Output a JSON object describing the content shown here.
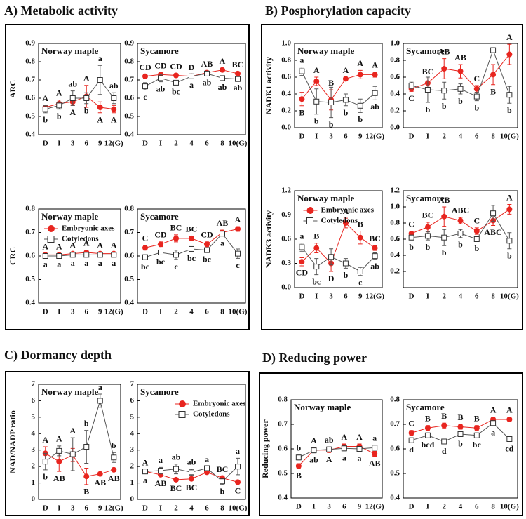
{
  "headings": [
    "A) Metabolic activity",
    "B) Posphorylation capacity",
    "C) Dormancy depth",
    "D) Reducing power"
  ],
  "chart_data": [
    {
      "type": "line",
      "title": "Norway maple",
      "ylabel": "ARC",
      "categories": [
        "D",
        "I",
        "3",
        "6",
        "9",
        "12(G)"
      ],
      "ylim": [
        0.4,
        0.9
      ],
      "yticks": [
        0.4,
        0.5,
        0.6,
        0.7,
        0.8,
        0.9
      ],
      "series": [
        {
          "color": "#e8251f",
          "marker": "circle",
          "values": [
            0.55,
            0.57,
            0.58,
            0.61,
            0.55,
            0.54
          ],
          "errors": [
            0.01,
            0.02,
            0.02,
            0.06,
            0.03,
            0.02
          ],
          "letters": [
            "A",
            "A",
            "A",
            "A",
            "A",
            "A"
          ]
        },
        {
          "color": "#555555",
          "marker": "square",
          "values": [
            0.54,
            0.56,
            0.6,
            0.6,
            0.7,
            0.6
          ],
          "errors": [
            0.02,
            0.02,
            0.04,
            0.03,
            0.08,
            0.03
          ],
          "letters": [
            "b",
            "b",
            "ab",
            "b",
            "a",
            "ab"
          ]
        }
      ]
    },
    {
      "type": "line",
      "title": "Sycamore",
      "categories": [
        "D",
        "I",
        "2",
        "4",
        "6",
        "8",
        "10(G)"
      ],
      "ylim": [
        0.4,
        0.9
      ],
      "yticks": [
        0.4,
        0.5,
        0.6,
        0.7,
        0.8,
        0.9
      ],
      "series": [
        {
          "color": "#e8251f",
          "marker": "circle",
          "values": [
            0.72,
            0.73,
            0.725,
            0.72,
            0.74,
            0.755,
            0.735
          ],
          "errors": [
            0.01,
            0.01,
            0.01,
            0.01,
            0.01,
            0.01,
            0.01
          ],
          "letters": [
            "CD",
            "CD",
            "CD",
            "D",
            "AB",
            "A",
            "BC"
          ]
        },
        {
          "color": "#555555",
          "marker": "square",
          "values": [
            0.665,
            0.71,
            0.685,
            0.72,
            0.735,
            0.71,
            0.705
          ],
          "errors": [
            0.02,
            0.02,
            0.01,
            0.01,
            0.01,
            0.01,
            0.01
          ],
          "letters": [
            "c",
            "ab",
            "bc",
            "a",
            "ab",
            "ab",
            "ab"
          ]
        }
      ]
    },
    {
      "type": "line",
      "title": "Norway maple",
      "ylabel": "CRC",
      "legend": "upper left",
      "categories": [
        "D",
        "I",
        "3",
        "6",
        "9",
        "12(G)"
      ],
      "ylim": [
        0.4,
        0.8
      ],
      "yticks": [
        0.4,
        0.5,
        0.6,
        0.7,
        0.8
      ],
      "series": [
        {
          "name": "Embryonic axes",
          "color": "#e8251f",
          "marker": "circle",
          "values": [
            0.605,
            0.605,
            0.61,
            0.615,
            0.61,
            0.61
          ],
          "errors": [
            0.005,
            0.005,
            0.005,
            0.01,
            0.005,
            0.005
          ],
          "letters": [
            "A",
            "A",
            "A",
            "A",
            "A",
            "A"
          ]
        },
        {
          "name": "Cotyledons",
          "color": "#555555",
          "marker": "square",
          "values": [
            0.6,
            0.6,
            0.605,
            0.605,
            0.605,
            0.605
          ],
          "errors": [
            0.005,
            0.005,
            0.005,
            0.005,
            0.005,
            0.005
          ],
          "letters": [
            "a",
            "a",
            "a",
            "a",
            "a",
            "a"
          ]
        }
      ]
    },
    {
      "type": "line",
      "title": "Sycamore",
      "categories": [
        "D",
        "I",
        "2",
        "4",
        "6",
        "8",
        "10(G)"
      ],
      "ylim": [
        0.4,
        0.8
      ],
      "yticks": [
        0.4,
        0.5,
        0.6,
        0.7,
        0.8
      ],
      "series": [
        {
          "color": "#e8251f",
          "marker": "circle",
          "values": [
            0.635,
            0.65,
            0.675,
            0.675,
            0.65,
            0.7,
            0.715
          ],
          "errors": [
            0.01,
            0.01,
            0.015,
            0.01,
            0.01,
            0.01,
            0.01
          ],
          "letters": [
            "C",
            "CD",
            "BC",
            "BC",
            "CD",
            "AB",
            "A"
          ]
        },
        {
          "color": "#555555",
          "marker": "square",
          "values": [
            0.595,
            0.615,
            0.605,
            0.63,
            0.625,
            0.695,
            0.61
          ],
          "errors": [
            0.01,
            0.01,
            0.02,
            0.01,
            0.01,
            0.01,
            0.02
          ],
          "letters": [
            "bc",
            "bc",
            "c",
            "bc",
            "bc",
            "a",
            "c"
          ]
        }
      ]
    },
    {
      "type": "line",
      "title": "Norway maple",
      "ylabel": "NADK1 activity",
      "categories": [
        "D",
        "I",
        "3",
        "6",
        "9",
        "12(G)"
      ],
      "ylim": [
        0,
        1
      ],
      "yticks": [
        {
          "value": 0,
          "label": "0.0"
        },
        0.2,
        0.4,
        0.6,
        0.8,
        {
          "value": 1,
          "label": "1.0"
        }
      ],
      "series": [
        {
          "color": "#e8251f",
          "marker": "circle",
          "values": [
            0.34,
            0.55,
            0.33,
            0.58,
            0.63,
            0.63
          ],
          "errors": [
            0.08,
            0.05,
            0.12,
            0.02,
            0.05,
            0.03
          ],
          "letters": [
            "B",
            "A",
            "B",
            "A",
            "A",
            "A"
          ]
        },
        {
          "color": "#555555",
          "marker": "square",
          "values": [
            0.67,
            0.31,
            0.3,
            0.33,
            0.26,
            0.41
          ],
          "errors": [
            0.05,
            0.15,
            0.18,
            0.07,
            0.08,
            0.08
          ],
          "letters": [
            "a",
            "b",
            "b",
            "b",
            "b",
            "ab"
          ]
        }
      ]
    },
    {
      "type": "line",
      "title": "Sycamore",
      "categories": [
        "D",
        "I",
        "2",
        "4",
        "6",
        "8",
        "10(G)"
      ],
      "ylim": [
        0,
        1
      ],
      "yticks": [
        {
          "value": 0,
          "label": "0.0"
        },
        0.2,
        0.4,
        0.6,
        0.8,
        {
          "value": 1,
          "label": "1.0"
        }
      ],
      "series": [
        {
          "color": "#e8251f",
          "marker": "circle",
          "values": [
            0.46,
            0.53,
            0.7,
            0.67,
            0.46,
            0.63,
            0.87
          ],
          "errors": [
            0.03,
            0.05,
            0.12,
            0.08,
            0.04,
            0.12,
            0.12
          ],
          "letters": [
            "C",
            "BC",
            "AB",
            "AB",
            "C",
            "B",
            "A"
          ]
        },
        {
          "color": "#555555",
          "marker": "square",
          "values": [
            0.5,
            0.45,
            0.44,
            0.46,
            0.37,
            0.92,
            0.39
          ],
          "errors": [
            0.04,
            0.15,
            0.1,
            0.06,
            0.05,
            0.03,
            0.1
          ],
          "letters": [
            null,
            "b",
            "b",
            "b",
            "b",
            null,
            "b"
          ]
        }
      ]
    },
    {
      "type": "line",
      "title": "Norway maple",
      "ylabel": "NADK3 activity",
      "legend": "upper center",
      "categories": [
        "D",
        "I",
        "3",
        "6",
        "9",
        "12(G)"
      ],
      "ylim": [
        0,
        1.2
      ],
      "yticks": [
        {
          "value": 0,
          "label": "0.0"
        },
        0.3,
        0.6,
        0.9,
        1.2
      ],
      "series": [
        {
          "name": "Embryonic axes",
          "color": "#e8251f",
          "marker": "circle",
          "values": [
            0.32,
            0.49,
            0.3,
            0.8,
            0.62,
            0.49
          ],
          "errors": [
            0.05,
            0.06,
            0.1,
            0.06,
            0.08,
            0.03
          ],
          "letters": [
            "CD",
            "B",
            "D",
            "A",
            "B",
            "BC"
          ]
        },
        {
          "name": "Cotyledons",
          "color": "#555555",
          "marker": "square",
          "values": [
            0.5,
            0.26,
            0.38,
            0.3,
            0.2,
            0.39
          ],
          "errors": [
            0.05,
            0.1,
            0.1,
            0.06,
            0.05,
            0.04
          ],
          "letters": [
            "a",
            "bc",
            null,
            "b",
            "c",
            "ab"
          ]
        }
      ]
    },
    {
      "type": "line",
      "title": "Sycamore",
      "categories": [
        "D",
        "I",
        "2",
        "4",
        "6",
        "8",
        "10(G)"
      ],
      "ylim": [
        0,
        1.2
      ],
      "yticks": [
        0.2,
        0.4,
        0.6,
        0.8,
        {
          "value": 1,
          "label": "1.0"
        },
        1.2
      ],
      "series": [
        {
          "color": "#e8251f",
          "marker": "circle",
          "values": [
            0.67,
            0.75,
            0.88,
            0.83,
            0.7,
            0.83,
            0.97
          ],
          "errors": [
            0.03,
            0.06,
            0.12,
            0.04,
            0.04,
            0.06,
            0.06
          ],
          "letters": [
            "C",
            "BC",
            "AB",
            "ABC",
            "C",
            "ABC",
            "A"
          ]
        },
        {
          "color": "#555555",
          "marker": "square",
          "values": [
            0.62,
            0.64,
            0.62,
            0.67,
            0.6,
            0.92,
            0.58
          ],
          "errors": [
            0.03,
            0.05,
            0.1,
            0.05,
            0.03,
            0.1,
            0.1
          ],
          "letters": [
            "b",
            "b",
            "b",
            "b",
            "b",
            null,
            "b"
          ]
        }
      ]
    },
    {
      "type": "line",
      "title": "Norway maple",
      "ylabel": "NAD/NADP ratio",
      "categories": [
        "D",
        "I",
        "3",
        "6",
        "9",
        "12(G)"
      ],
      "ylim": [
        0,
        7
      ],
      "yticks": [
        0,
        1,
        2,
        3,
        4,
        5,
        6,
        7
      ],
      "series": [
        {
          "color": "#e8251f",
          "marker": "circle",
          "values": [
            2.8,
            2.3,
            2.7,
            1.4,
            1.55,
            1.8
          ],
          "errors": [
            0.4,
            0.6,
            0.4,
            0.5,
            0.1,
            0.1
          ],
          "letters": [
            "A",
            "AB",
            null,
            "B",
            "AB",
            "AB"
          ]
        },
        {
          "color": "#555555",
          "marker": "square",
          "values": [
            2.3,
            2.95,
            2.75,
            3.2,
            6.0,
            2.55
          ],
          "errors": [
            0.5,
            0.3,
            1.0,
            1.0,
            0.4,
            0.3
          ],
          "letters": [
            "b",
            "A",
            "A",
            "b",
            "a",
            "b"
          ]
        }
      ]
    },
    {
      "type": "line",
      "title": "Sycamore",
      "legend": "upper right",
      "categories": [
        "D",
        "I",
        "2",
        "4",
        "6",
        "8",
        "10(G)"
      ],
      "ylim": [
        0,
        7
      ],
      "yticks": [
        0,
        1,
        2,
        3,
        4,
        5,
        6,
        7
      ],
      "series": [
        {
          "name": "Embryonic axes",
          "color": "#e8251f",
          "marker": "circle",
          "values": [
            1.7,
            1.5,
            1.2,
            1.25,
            1.65,
            1.3,
            1.05
          ],
          "errors": [
            0.1,
            0.1,
            0.1,
            0.1,
            0.1,
            0.1,
            0.1
          ],
          "letters": [
            "A",
            "AB",
            "BC",
            "BC",
            null,
            "BC",
            "C"
          ]
        },
        {
          "name": "Cotyledons",
          "color": "#555555",
          "marker": "square",
          "values": [
            1.7,
            1.75,
            1.85,
            1.65,
            1.9,
            1.1,
            2.0
          ],
          "errors": [
            0.1,
            0.2,
            0.3,
            0.2,
            0.1,
            0.2,
            0.5
          ],
          "letters": [
            "a",
            "a",
            "ab",
            "ab",
            "a",
            "b",
            "a"
          ]
        }
      ]
    },
    {
      "type": "line",
      "title": "Norway maple",
      "ylabel": "Reducing power",
      "categories": [
        "D",
        "I",
        "3",
        "6",
        "9",
        "12(G)"
      ],
      "ylim": [
        0.4,
        0.8
      ],
      "yticks": [
        0.4,
        0.5,
        0.6,
        0.7,
        0.8
      ],
      "series": [
        {
          "color": "#e8251f",
          "marker": "circle",
          "values": [
            0.53,
            0.595,
            0.595,
            0.61,
            0.61,
            0.58
          ],
          "errors": [
            0.01,
            0.01,
            0.01,
            0.01,
            0.01,
            0.01
          ],
          "letters": [
            "B",
            "A",
            "A",
            "A",
            "A",
            "AB"
          ]
        },
        {
          "color": "#555555",
          "marker": "square",
          "values": [
            0.565,
            0.594,
            0.598,
            0.602,
            0.6,
            0.605
          ],
          "errors": [
            0.01,
            0.01,
            0.01,
            0.01,
            0.01,
            0.01
          ],
          "letters": [
            "b",
            "ab",
            "ab",
            "a",
            "a",
            "a"
          ]
        }
      ]
    },
    {
      "type": "line",
      "title": "Sycamore",
      "categories": [
        "D",
        "I",
        "2",
        "4",
        "6",
        "8",
        "10(G)"
      ],
      "ylim": [
        0.4,
        0.8
      ],
      "yticks": [
        0.4,
        0.5,
        0.6,
        0.7,
        0.8
      ],
      "series": [
        {
          "color": "#e8251f",
          "marker": "circle",
          "values": [
            0.665,
            0.685,
            0.695,
            0.69,
            0.685,
            0.72,
            0.72
          ],
          "errors": [
            0.01,
            0.01,
            0.01,
            0.01,
            0.01,
            0.01,
            0.01
          ],
          "letters": [
            "C",
            "B",
            "B",
            "B",
            "B",
            "A",
            "A"
          ]
        },
        {
          "color": "#555555",
          "marker": "square",
          "values": [
            0.635,
            0.655,
            0.63,
            0.66,
            0.655,
            0.705,
            0.64
          ],
          "errors": [
            0.01,
            0.01,
            0.01,
            0.01,
            0.01,
            0.01,
            0.01
          ],
          "letters": [
            "d",
            "bcd",
            "d",
            "b",
            "bc",
            "a",
            "cd"
          ]
        }
      ]
    }
  ]
}
